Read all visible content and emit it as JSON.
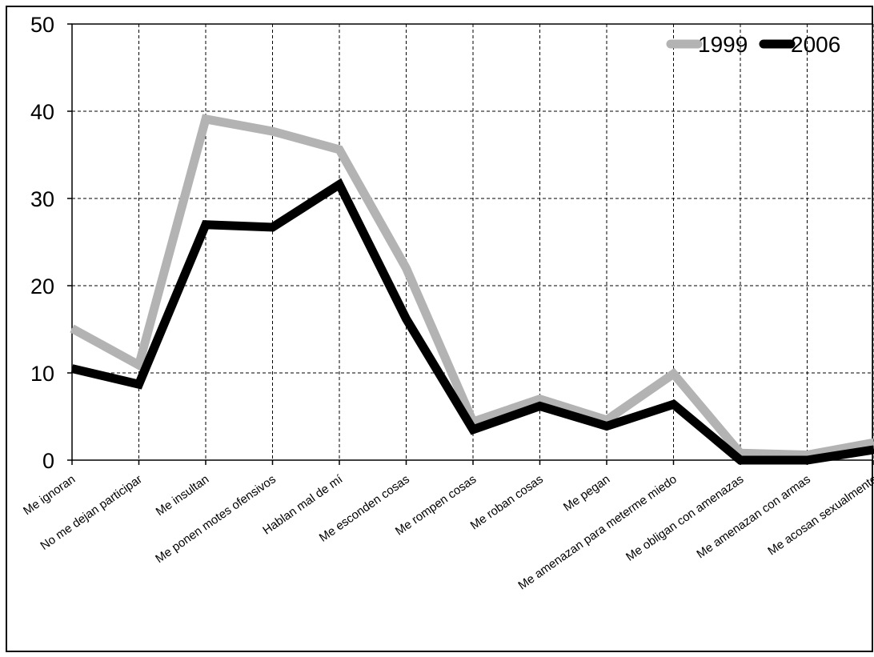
{
  "chart_data": {
    "type": "line",
    "title": "",
    "xlabel": "",
    "ylabel": "",
    "ylim": [
      0,
      50
    ],
    "yticks": [
      0,
      10,
      20,
      30,
      40,
      50
    ],
    "grid": true,
    "legend_position": "top-right",
    "categories": [
      "Me ignoran",
      "No me dejan participar",
      "Me insultan",
      "Me ponen motes ofensivos",
      "Hablan mal de mí",
      "Me esconden cosas",
      "Me rompen cosas",
      "Me roban cosas",
      "Me pegan",
      "Me amenazan para meterme miedo",
      "Me obligan con amenazas",
      "Me amenazan con armas",
      "Me acosan sexualmente"
    ],
    "series": [
      {
        "name": "1999",
        "color": "#b3b3b3",
        "values": [
          15.1,
          10.9,
          39.1,
          37.7,
          35.6,
          22.0,
          4.4,
          7.0,
          4.6,
          9.9,
          0.8,
          0.6,
          2.0
        ]
      },
      {
        "name": "2006",
        "color": "#000000",
        "values": [
          10.5,
          8.7,
          27.0,
          26.7,
          31.6,
          16.2,
          3.5,
          6.2,
          3.9,
          6.4,
          0.0,
          0.0,
          1.2
        ]
      }
    ]
  }
}
